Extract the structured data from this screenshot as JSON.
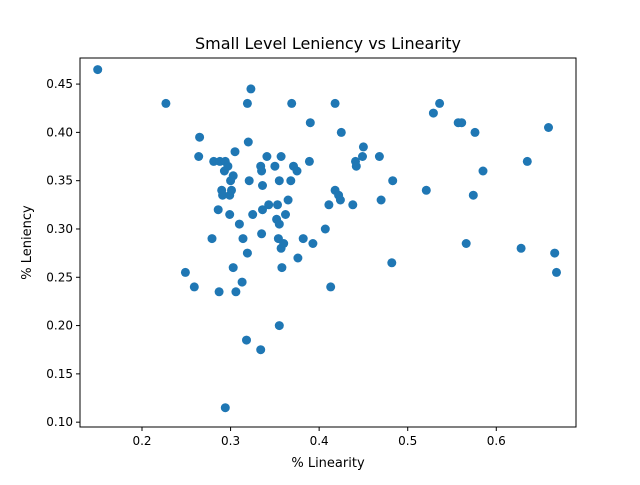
{
  "chart_data": {
    "type": "scatter",
    "title": "Small Level Leniency vs Linearity",
    "xlabel": "% Linearity",
    "ylabel": "% Leniency",
    "xlim": [
      0.13,
      0.69
    ],
    "ylim": [
      0.095,
      0.477
    ],
    "xticks": [
      0.2,
      0.3,
      0.4,
      0.5,
      0.6
    ],
    "xtick_labels": [
      "0.2",
      "0.3",
      "0.4",
      "0.5",
      "0.6"
    ],
    "yticks": [
      0.1,
      0.15,
      0.2,
      0.25,
      0.3,
      0.35,
      0.4,
      0.45
    ],
    "ytick_labels": [
      "0.10",
      "0.15",
      "0.20",
      "0.25",
      "0.30",
      "0.35",
      "0.40",
      "0.45"
    ],
    "grid": false,
    "legend": false,
    "marker_color": "#1f77b4",
    "series": [
      {
        "points": [
          [
            0.15,
            0.465
          ],
          [
            0.227,
            0.43
          ],
          [
            0.265,
            0.395
          ],
          [
            0.264,
            0.375
          ],
          [
            0.249,
            0.255
          ],
          [
            0.259,
            0.24
          ],
          [
            0.279,
            0.29
          ],
          [
            0.281,
            0.37
          ],
          [
            0.288,
            0.37
          ],
          [
            0.286,
            0.32
          ],
          [
            0.29,
            0.34
          ],
          [
            0.291,
            0.335
          ],
          [
            0.293,
            0.36
          ],
          [
            0.294,
            0.37
          ],
          [
            0.297,
            0.365
          ],
          [
            0.299,
            0.335
          ],
          [
            0.3,
            0.35
          ],
          [
            0.301,
            0.34
          ],
          [
            0.299,
            0.315
          ],
          [
            0.303,
            0.355
          ],
          [
            0.305,
            0.38
          ],
          [
            0.303,
            0.26
          ],
          [
            0.306,
            0.235
          ],
          [
            0.287,
            0.235
          ],
          [
            0.294,
            0.115
          ],
          [
            0.31,
            0.305
          ],
          [
            0.314,
            0.29
          ],
          [
            0.313,
            0.245
          ],
          [
            0.318,
            0.185
          ],
          [
            0.319,
            0.43
          ],
          [
            0.32,
            0.39
          ],
          [
            0.321,
            0.35
          ],
          [
            0.319,
            0.275
          ],
          [
            0.323,
            0.445
          ],
          [
            0.325,
            0.315
          ],
          [
            0.335,
            0.36
          ],
          [
            0.334,
            0.365
          ],
          [
            0.336,
            0.345
          ],
          [
            0.336,
            0.32
          ],
          [
            0.335,
            0.295
          ],
          [
            0.334,
            0.175
          ],
          [
            0.341,
            0.375
          ],
          [
            0.343,
            0.325
          ],
          [
            0.35,
            0.365
          ],
          [
            0.355,
            0.35
          ],
          [
            0.357,
            0.375
          ],
          [
            0.353,
            0.325
          ],
          [
            0.352,
            0.31
          ],
          [
            0.355,
            0.305
          ],
          [
            0.354,
            0.29
          ],
          [
            0.357,
            0.28
          ],
          [
            0.36,
            0.285
          ],
          [
            0.358,
            0.26
          ],
          [
            0.355,
            0.2
          ],
          [
            0.362,
            0.315
          ],
          [
            0.365,
            0.33
          ],
          [
            0.368,
            0.35
          ],
          [
            0.369,
            0.43
          ],
          [
            0.371,
            0.365
          ],
          [
            0.375,
            0.36
          ],
          [
            0.376,
            0.27
          ],
          [
            0.382,
            0.29
          ],
          [
            0.39,
            0.41
          ],
          [
            0.389,
            0.37
          ],
          [
            0.393,
            0.285
          ],
          [
            0.407,
            0.3
          ],
          [
            0.411,
            0.325
          ],
          [
            0.413,
            0.24
          ],
          [
            0.418,
            0.43
          ],
          [
            0.418,
            0.34
          ],
          [
            0.422,
            0.335
          ],
          [
            0.424,
            0.33
          ],
          [
            0.425,
            0.4
          ],
          [
            0.438,
            0.325
          ],
          [
            0.441,
            0.37
          ],
          [
            0.442,
            0.365
          ],
          [
            0.449,
            0.375
          ],
          [
            0.45,
            0.385
          ],
          [
            0.468,
            0.375
          ],
          [
            0.47,
            0.33
          ],
          [
            0.483,
            0.35
          ],
          [
            0.482,
            0.265
          ],
          [
            0.521,
            0.34
          ],
          [
            0.529,
            0.42
          ],
          [
            0.536,
            0.43
          ],
          [
            0.557,
            0.41
          ],
          [
            0.561,
            0.41
          ],
          [
            0.566,
            0.285
          ],
          [
            0.574,
            0.335
          ],
          [
            0.576,
            0.4
          ],
          [
            0.585,
            0.36
          ],
          [
            0.628,
            0.28
          ],
          [
            0.635,
            0.37
          ],
          [
            0.659,
            0.405
          ],
          [
            0.666,
            0.275
          ],
          [
            0.668,
            0.255
          ]
        ]
      }
    ]
  }
}
